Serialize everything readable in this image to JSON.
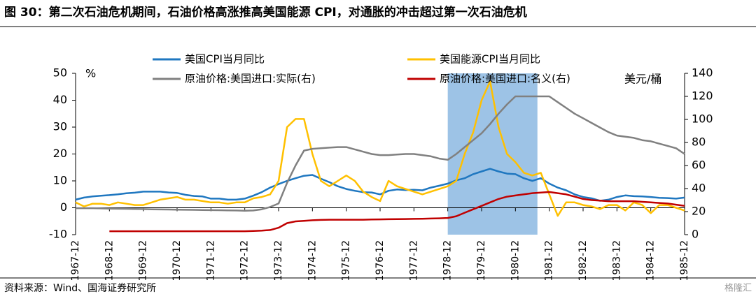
{
  "chart_data": {
    "type": "line",
    "title": "图 30：第二次石油危机期间，石油价格高涨推高美国能源 CPI，对通胀的冲击超过第一次石油危机",
    "source": "资料来源：Wind、国海证券研究所",
    "watermark": "格隆汇",
    "y_unit": "%",
    "y2_unit": "美元/桶",
    "categories": [
      "1967-12",
      null,
      null,
      null,
      "1968-12",
      null,
      null,
      null,
      "1969-12",
      null,
      null,
      null,
      "1970-12",
      null,
      null,
      null,
      "1971-12",
      null,
      null,
      null,
      "1972-12",
      null,
      null,
      null,
      "1973-12",
      null,
      null,
      null,
      "1974-12",
      null,
      null,
      null,
      "1975-12",
      null,
      null,
      null,
      "1976-12",
      null,
      null,
      null,
      "1977-12",
      null,
      null,
      null,
      "1978-12",
      null,
      null,
      null,
      "1979-12",
      null,
      null,
      null,
      "1980-12",
      null,
      null,
      null,
      "1981-12",
      null,
      null,
      null,
      "1982-12",
      null,
      null,
      null,
      "1983-12",
      null,
      null,
      null,
      "1984-12",
      null,
      null,
      null,
      "1985-12"
    ],
    "shade": {
      "from": 44,
      "to": 54.6,
      "color": "#9dc3e6"
    },
    "ylim": [
      -10,
      50
    ],
    "yticks": [
      -10,
      0,
      10,
      20,
      30,
      40,
      50
    ],
    "y2lim": [
      0,
      140
    ],
    "y2ticks": [
      0,
      20,
      40,
      60,
      80,
      100,
      120,
      140
    ],
    "series": [
      {
        "name": "美国CPI当月同比",
        "color": "#1f77c0",
        "values": [
          3.0,
          3.8,
          4.2,
          4.5,
          4.7,
          5.0,
          5.4,
          5.6,
          6.0,
          6.0,
          6.0,
          5.7,
          5.5,
          4.8,
          4.4,
          4.2,
          3.4,
          3.4,
          3.0,
          3.0,
          3.4,
          4.5,
          5.8,
          7.5,
          8.8,
          10.0,
          11.0,
          11.9,
          12.2,
          10.8,
          9.5,
          8.0,
          7.0,
          6.3,
          5.8,
          5.7,
          5.0,
          6.3,
          6.8,
          6.6,
          6.7,
          6.5,
          7.5,
          8.2,
          9.0,
          10.2,
          11.0,
          12.5,
          13.5,
          14.5,
          13.5,
          12.7,
          12.5,
          11.0,
          10.0,
          11.0,
          9.0,
          7.5,
          6.5,
          5.0,
          4.0,
          3.5,
          2.6,
          3.0,
          4.0,
          4.6,
          4.3,
          4.2,
          4.0,
          3.7,
          3.6,
          3.4,
          3.8
        ]
      },
      {
        "name": "美国能源CPI当月同比",
        "color": "#ffc000",
        "values": [
          2,
          0.5,
          1.5,
          1.5,
          1,
          2,
          1.5,
          1,
          1,
          2,
          3,
          3.5,
          4,
          3,
          3,
          2.5,
          2,
          2,
          1.5,
          2,
          2,
          3.5,
          4,
          5,
          10,
          30,
          33,
          33,
          20,
          10,
          8,
          10,
          12,
          10,
          6,
          4,
          2.5,
          10,
          8,
          7,
          6,
          5,
          6,
          7,
          8,
          10,
          20,
          28,
          40,
          47,
          30,
          20,
          17,
          13,
          12,
          13,
          5,
          -3,
          2,
          2,
          1,
          0.5,
          -0.5,
          1,
          1,
          -1,
          2,
          1,
          -2,
          1,
          1,
          0,
          -1
        ]
      },
      {
        "name": "原油价格:美国进口:实际(右)",
        "color": "#808080",
        "axis": "y2",
        "values": [
          23,
          23,
          23,
          22.8,
          22.6,
          22.5,
          22.4,
          22.3,
          22.2,
          22,
          21.9,
          21.8,
          21.7,
          21.6,
          21.5,
          21.4,
          21.3,
          21.2,
          21.1,
          21,
          20.8,
          21,
          22,
          24,
          27,
          45,
          60,
          73,
          74.5,
          75,
          75.5,
          76,
          76,
          74,
          72,
          70,
          69,
          69,
          69.5,
          70,
          70,
          69,
          68,
          66,
          65,
          70,
          76,
          82,
          88,
          96,
          105,
          113,
          120,
          120,
          120,
          120,
          120,
          115,
          110,
          105,
          101,
          97,
          93,
          89,
          86,
          85,
          84,
          82,
          81,
          79,
          77,
          75,
          70
        ]
      },
      {
        "name": "原油价格:美国进口:名义(右)",
        "color": "#c00000",
        "axis": "y2",
        "values": [
          null,
          null,
          null,
          null,
          3,
          3,
          3,
          3,
          3,
          3,
          3,
          3,
          3,
          3,
          3,
          3,
          3,
          3,
          3,
          3,
          3,
          3.2,
          3.5,
          4,
          6,
          10,
          11.5,
          12,
          12.5,
          12.8,
          13,
          13,
          13,
          13,
          13,
          13.2,
          13.3,
          13.4,
          13.5,
          13.6,
          13.7,
          13.8,
          14,
          14.2,
          14.5,
          16,
          19,
          22,
          25,
          28,
          31,
          33,
          34,
          35,
          36,
          36.5,
          37,
          36,
          35,
          33,
          31,
          30,
          29.5,
          29,
          29,
          29,
          29,
          28.5,
          28,
          27.5,
          27,
          26,
          25
        ]
      }
    ]
  }
}
